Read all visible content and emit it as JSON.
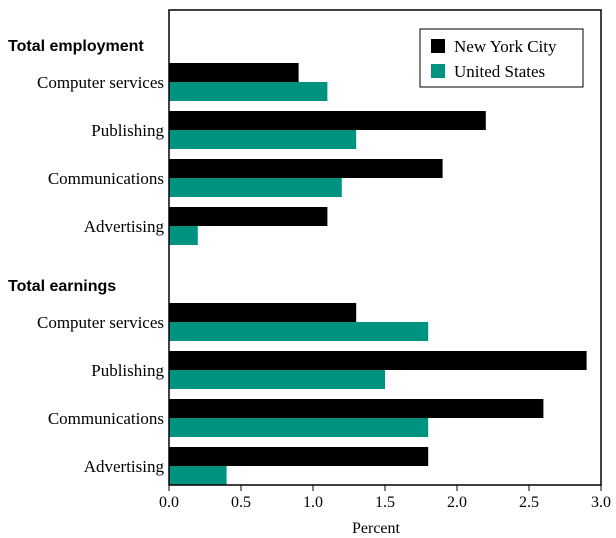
{
  "chart_data": {
    "type": "bar",
    "orientation": "horizontal",
    "xlabel": "Percent",
    "xlim": [
      0,
      3.0
    ],
    "xticks": [
      "0.0",
      "0.5",
      "1.0",
      "1.5",
      "2.0",
      "2.5",
      "3.0"
    ],
    "grid": false,
    "legend_position": "top-right",
    "colors": {
      "nyc": "#000000",
      "us": "#009480"
    },
    "legend": [
      {
        "name": "New York City",
        "color": "#000000"
      },
      {
        "name": "United States",
        "color": "#009480"
      }
    ],
    "groups": [
      {
        "title": "Total employment",
        "categories": [
          "Computer services",
          "Publishing",
          "Communications",
          "Advertising"
        ],
        "series": [
          {
            "name": "New York City",
            "values": [
              0.9,
              2.2,
              1.9,
              1.1
            ]
          },
          {
            "name": "United States",
            "values": [
              1.1,
              1.3,
              1.2,
              0.2
            ]
          }
        ]
      },
      {
        "title": "Total earnings",
        "categories": [
          "Computer services",
          "Publishing",
          "Communications",
          "Advertising"
        ],
        "series": [
          {
            "name": "New York City",
            "values": [
              1.3,
              2.9,
              2.6,
              1.8
            ]
          },
          {
            "name": "United States",
            "values": [
              1.8,
              1.5,
              1.8,
              0.4
            ]
          }
        ]
      }
    ]
  }
}
